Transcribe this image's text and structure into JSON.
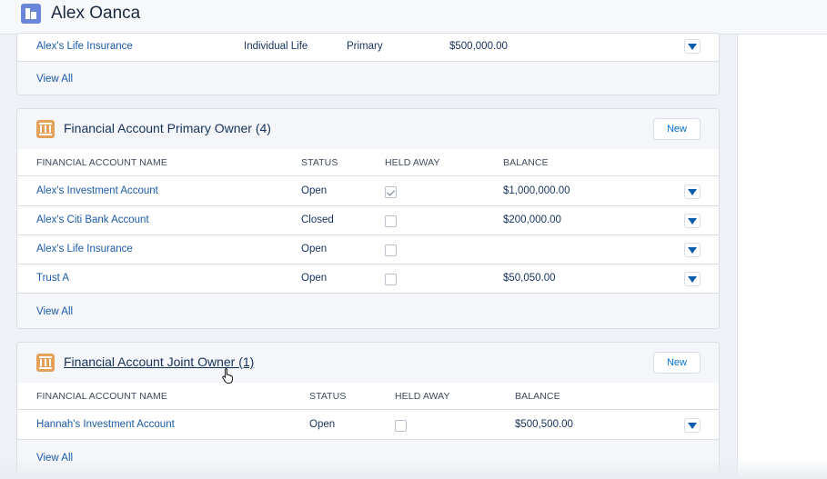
{
  "header": {
    "title": "Alex Oanca",
    "icon": "record-icon"
  },
  "top_card": {
    "row": {
      "name": "Alex's Life Insurance",
      "type": "Individual Life",
      "role": "Primary",
      "amount": "$500,000.00"
    },
    "view_all": "View All"
  },
  "primary_card": {
    "title": "Financial Account Primary Owner (4)",
    "icon": "bank-icon",
    "new_label": "New",
    "columns": [
      "FINANCIAL ACCOUNT NAME",
      "STATUS",
      "HELD AWAY",
      "BALANCE"
    ],
    "rows": [
      {
        "name": "Alex's Investment Account",
        "status": "Open",
        "held_away": true,
        "balance": "$1,000,000.00"
      },
      {
        "name": "Alex's Citi Bank Account",
        "status": "Closed",
        "held_away": false,
        "balance": "$200,000.00"
      },
      {
        "name": "Alex's Life Insurance",
        "status": "Open",
        "held_away": false,
        "balance": ""
      },
      {
        "name": "Trust A",
        "status": "Open",
        "held_away": false,
        "balance": "$50,050.00"
      }
    ],
    "view_all": "View All"
  },
  "joint_card": {
    "title": "Financial Account Joint Owner (1)",
    "icon": "bank-icon",
    "new_label": "New",
    "columns": [
      "FINANCIAL ACCOUNT NAME",
      "STATUS",
      "HELD AWAY",
      "BALANCE"
    ],
    "rows": [
      {
        "name": "Hannah's Investment Account",
        "status": "Open",
        "held_away": false,
        "balance": "$500,500.00"
      }
    ],
    "view_all": "View All"
  },
  "colors": {
    "link": "#1b5aa6",
    "accent": "#0b5cab",
    "bank_icon_bg": "#e5a05a",
    "record_icon_bg": "#6b86d8"
  }
}
